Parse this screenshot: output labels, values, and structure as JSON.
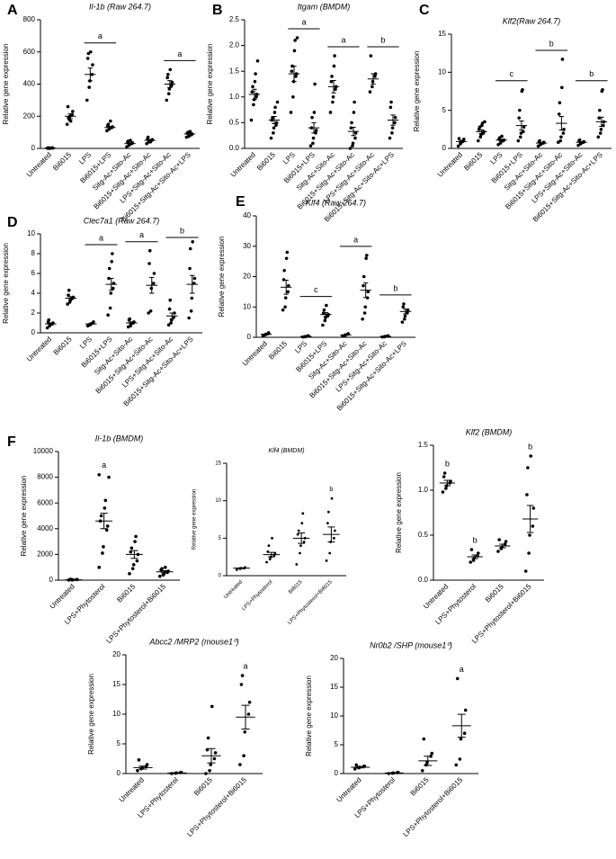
{
  "chart_data": [
    {
      "type": "dot",
      "panel": "A",
      "title": "Il-1b (Raw 264.7)",
      "ylabel": "Relative gene expression",
      "categories": [
        "Untreated",
        "Bi6015",
        "LPS",
        "Bi6015+LPS",
        "Sitg-Ac+Sito-Ac",
        "Bi6015+Sitg-Ac+Sito-Ac",
        "LPS+Sitg-Ac+Sito-Ac",
        "Bi6015+Sitg-Ac+Sito-Ac+LPS"
      ],
      "points": [
        [
          2,
          3,
          1,
          4,
          2,
          3,
          1
        ],
        [
          150,
          180,
          200,
          210,
          230,
          260,
          190,
          170
        ],
        [
          300,
          380,
          420,
          460,
          520,
          560,
          590,
          600
        ],
        [
          110,
          120,
          125,
          130,
          135,
          140,
          150,
          170
        ],
        [
          10,
          20,
          25,
          30,
          35,
          40,
          45,
          50
        ],
        [
          30,
          40,
          45,
          50,
          55,
          60,
          70,
          40
        ],
        [
          300,
          340,
          370,
          390,
          410,
          440,
          460,
          490
        ],
        [
          70,
          75,
          80,
          85,
          90,
          95,
          100,
          105
        ]
      ],
      "means": [
        2,
        200,
        460,
        130,
        30,
        50,
        400,
        90
      ],
      "sems": [
        1,
        15,
        40,
        7,
        5,
        5,
        22,
        5
      ],
      "ylim": [
        0,
        800
      ],
      "yticks": [
        0,
        200,
        400,
        600,
        800
      ],
      "sig_labels": [
        null,
        null,
        "a",
        null,
        null,
        null,
        "a",
        null
      ],
      "sig_bars": true
    },
    {
      "type": "dot",
      "panel": "B",
      "title": "Itgam (BMDM)",
      "ylabel": "Relative gene expression",
      "categories": [
        "Untreated",
        "Bi6015",
        "LPS",
        "Bi6015+LPS",
        "Sitg-Ac+Sito-Ac",
        "Bi6015+Sitg-Ac+Sito-Ac",
        "LPS+Sitg-Ac+Sito-Ac",
        "Bi6015+Sitg-Ac+Sito-Ac+LPS"
      ],
      "points": [
        [
          0.55,
          0.85,
          0.95,
          1.0,
          1.05,
          1.1,
          1.2,
          1.3,
          1.45,
          1.7
        ],
        [
          0.2,
          0.3,
          0.4,
          0.45,
          0.5,
          0.55,
          0.6,
          0.7,
          0.8,
          0.9
        ],
        [
          0.7,
          1.0,
          1.3,
          1.4,
          1.45,
          1.5,
          1.6,
          1.9,
          2.1,
          2.15
        ],
        [
          0.05,
          0.1,
          0.2,
          0.3,
          0.35,
          0.4,
          0.6,
          0.7,
          1.25
        ],
        [
          0.7,
          0.9,
          1.0,
          1.15,
          1.2,
          1.3,
          1.4,
          1.6,
          1.8
        ],
        [
          0,
          0.05,
          0.1,
          0.2,
          0.3,
          0.4,
          0.5,
          0.7,
          0.9
        ],
        [
          1.1,
          1.2,
          1.3,
          1.4,
          1.45,
          1.8
        ],
        [
          0.2,
          0.3,
          0.4,
          0.5,
          0.6,
          0.8,
          0.9
        ]
      ],
      "means": [
        1.05,
        0.55,
        1.45,
        0.4,
        1.2,
        0.33,
        1.35,
        0.55
      ],
      "sems": [
        0.1,
        0.07,
        0.15,
        0.1,
        0.12,
        0.08,
        0.1,
        0.1
      ],
      "ylim": [
        0,
        2.5
      ],
      "yticks": [
        {
          "value": 0,
          "label": "0.0"
        },
        0.5,
        {
          "value": 1,
          "label": "1.0"
        },
        1.5,
        {
          "value": 2,
          "label": "2.0"
        },
        2.5
      ],
      "sig_labels": [
        null,
        null,
        "a",
        null,
        "a",
        null,
        "b",
        null
      ],
      "sig_bars": true
    },
    {
      "type": "dot",
      "panel": "C",
      "title": "Klf2(Raw 264.7)",
      "ylabel": "Relative gene expression",
      "categories": [
        "Untreated",
        "Bi6015",
        "LPS",
        "Bi6015+LPS",
        "Sitg-Ac+Sito-Ac",
        "Bi6015+Sitg-Ac+Sito-Ac",
        "LPS+Sitg-Ac+Sito-Ac",
        "Bi6015+Sitg-Ac+Sito-Ac+LPS"
      ],
      "points": [
        [
          0.3,
          0.6,
          0.8,
          1,
          1.2,
          1.3
        ],
        [
          1,
          1.5,
          1.8,
          2,
          2.2,
          2.5,
          2.8,
          3,
          3.3,
          3.5
        ],
        [
          0.5,
          0.7,
          0.9,
          1,
          1.1,
          1.2,
          1.4,
          1.6
        ],
        [
          1,
          1.5,
          2,
          2.2,
          2.8,
          4,
          5,
          7.5,
          7.7
        ],
        [
          0.3,
          0.5,
          0.6,
          0.7,
          0.8,
          0.9,
          1
        ],
        [
          0.8,
          1,
          1.5,
          2,
          2.5,
          4.5,
          6,
          8,
          11.7
        ],
        [
          0.4,
          0.6,
          0.7,
          0.8,
          0.9,
          1,
          1.1
        ],
        [
          1.5,
          2,
          2.5,
          3,
          3.5,
          4,
          5,
          7.5,
          7.7
        ]
      ],
      "means": [
        0.9,
        2.2,
        1.1,
        3,
        0.7,
        3.3,
        0.8,
        3.5
      ],
      "sems": [
        0.15,
        0.25,
        0.1,
        0.6,
        0.08,
        0.9,
        0.08,
        0.6
      ],
      "ylim": [
        0,
        15
      ],
      "yticks": [
        0,
        5,
        10,
        15
      ],
      "sig_labels": [
        null,
        null,
        "c",
        null,
        "b",
        null,
        "b",
        null
      ],
      "sig_bars": true
    },
    {
      "type": "dot",
      "panel": "D",
      "title": "Clec7a1 (Raw 264.7)",
      "ylabel": "Relative gene expression",
      "categories": [
        "Untreated",
        "Bi6015",
        "LPS",
        "Bi6015+LPS",
        "Sitg-Ac+Sito-Ac",
        "Bi6015+Sitg-Ac+Sito-Ac",
        "LPS+Sitg-Ac+Sito-Ac",
        "Bi6015+Sitg-Ac+Sito-Ac+LPS"
      ],
      "points": [
        [
          0.5,
          0.7,
          0.8,
          0.9,
          1,
          1.1,
          1.3
        ],
        [
          2.9,
          3.1,
          3.3,
          3.5,
          3.6,
          3.8,
          4.3
        ],
        [
          0.7,
          0.8,
          0.9,
          1.0,
          1.1
        ],
        [
          1.8,
          2.5,
          4,
          4.5,
          5,
          5.5,
          6.5,
          7.2,
          8
        ],
        [
          0.6,
          0.7,
          0.9,
          1,
          1.1,
          1.3,
          1.4
        ],
        [
          2,
          2.2,
          4.5,
          5,
          6,
          7,
          8.3
        ],
        [
          0.8,
          1,
          1.3,
          1.6,
          2,
          2.4,
          3.3
        ],
        [
          1.5,
          2.2,
          3.5,
          5,
          5.5,
          6.5,
          8.5,
          9.2
        ]
      ],
      "means": [
        0.9,
        3.5,
        0.9,
        4.9,
        1.0,
        4.8,
        1.7,
        4.9
      ],
      "sems": [
        0.1,
        0.15,
        0.05,
        0.6,
        0.1,
        0.8,
        0.3,
        0.9
      ],
      "ylim": [
        0,
        10
      ],
      "yticks": [
        0,
        2,
        4,
        6,
        8,
        10
      ],
      "sig_labels": [
        null,
        null,
        "a",
        null,
        "a",
        null,
        "b",
        null
      ],
      "sig_bars": true
    },
    {
      "type": "dot",
      "panel": "E",
      "title": "Klf4 (Raw 264.7)",
      "ylabel": "Relative gene expression",
      "categories": [
        "Untreated",
        "Bi6015",
        "LPS",
        "Bi6015+LPS",
        "Sitg-Ac+Sito-Ac",
        "Bi6015+Sitg-Ac+Sito-Ac",
        "LPS+Sitg-Ac+Sito-Ac",
        "Bi6015+Sitg-Ac+Sito-Ac+LPS"
      ],
      "points": [
        [
          0.5,
          0.8,
          1,
          1.2,
          1.5
        ],
        [
          9,
          10,
          13,
          15,
          17,
          19,
          22,
          26,
          28
        ],
        [
          0.1,
          0.2,
          0.3,
          0.4,
          0.5
        ],
        [
          4,
          5.5,
          6.5,
          7,
          7.5,
          8,
          9,
          10.5
        ],
        [
          0.4,
          0.6,
          0.8,
          1,
          1.2
        ],
        [
          6,
          8,
          10,
          13,
          15,
          17,
          20,
          26,
          27
        ],
        [
          0.1,
          0.2,
          0.3,
          0.4,
          0.5
        ],
        [
          5,
          6,
          7,
          8,
          9,
          10,
          11
        ]
      ],
      "means": [
        1,
        16.5,
        0.3,
        7.5,
        0.8,
        15.5,
        0.3,
        8.5
      ],
      "sems": [
        0.15,
        2.3,
        0.05,
        0.6,
        0.1,
        2.4,
        0.05,
        0.8
      ],
      "ylim": [
        0,
        40
      ],
      "yticks": [
        0,
        10,
        20,
        30,
        40
      ],
      "sig_labels": [
        null,
        null,
        "c",
        null,
        "a",
        null,
        "b",
        null
      ],
      "sig_bars": true
    },
    {
      "type": "dot",
      "panel": "F",
      "title": "Il-1b (BMDM)",
      "ylabel": "Relative gene expression",
      "categories": [
        "Untreated",
        "LPS+Phytosterol",
        "Bi6015",
        "LPS+Phytosterol+Bi6015"
      ],
      "points": [
        [
          10,
          20,
          30,
          40,
          50,
          60,
          70
        ],
        [
          1000,
          2100,
          2600,
          3900,
          4200,
          4600,
          5000,
          5600,
          6200,
          8000,
          8200
        ],
        [
          500,
          900,
          1200,
          1500,
          2000,
          2200,
          2500,
          3000,
          3400
        ],
        [
          300,
          400,
          500,
          600,
          700,
          800,
          900,
          1000
        ]
      ],
      "means": [
        30,
        4600,
        2000,
        650
      ],
      "sems": [
        5,
        600,
        300,
        80
      ],
      "ylim": [
        0,
        10000
      ],
      "yticks": [
        0,
        2000,
        4000,
        6000,
        8000,
        10000
      ],
      "sig_labels": [
        null,
        "a",
        null,
        null
      ],
      "sig_bars": false
    },
    {
      "type": "dot",
      "title": "Klf4 (BMDM)",
      "ylabel": "Relative gene expression",
      "categories": [
        "Untreated",
        "LPS+Phytosterol",
        "Bi6015",
        "LPS+Phytosterol+Bi6015"
      ],
      "points": [
        [
          0.8,
          0.9,
          1,
          1,
          1.1
        ],
        [
          1.8,
          2.2,
          2.5,
          2.7,
          3,
          3.2,
          4,
          5
        ],
        [
          1.5,
          3,
          4,
          4.5,
          5,
          5.5,
          6,
          7,
          8.3
        ],
        [
          2,
          3,
          4.5,
          5,
          6,
          7,
          8.5,
          10.3
        ]
      ],
      "means": [
        1,
        2.8,
        5,
        5.5
      ],
      "sems": [
        0.05,
        0.3,
        0.7,
        1.0
      ],
      "ylim": [
        0,
        15
      ],
      "yticks": [
        0,
        5,
        10,
        15
      ],
      "sig_labels": [
        null,
        null,
        null,
        "b"
      ],
      "sig_bars": false
    },
    {
      "type": "dot",
      "title": "Klf2 (BMDM)",
      "ylabel": "Relative gene expression",
      "categories": [
        "Untreated",
        "LPS+Phytosterol",
        "Bi6015",
        "LPS+Phytosterol+Bi6015"
      ],
      "points": [
        [
          0.98,
          1.02,
          1.05,
          1.08,
          1.1,
          1.15,
          1.19
        ],
        [
          0.2,
          0.22,
          0.25,
          0.27,
          0.3,
          0.34
        ],
        [
          0.32,
          0.35,
          0.37,
          0.4,
          0.43,
          0.45
        ],
        [
          0.1,
          0.3,
          0.5,
          0.6,
          0.8,
          0.95,
          1.25,
          1.38
        ]
      ],
      "means": [
        1.08,
        0.26,
        0.38,
        0.68
      ],
      "sems": [
        0.03,
        0.02,
        0.02,
        0.15
      ],
      "ylim": [
        0,
        1.5
      ],
      "yticks": [
        {
          "value": 0,
          "label": "0.0"
        },
        0.5,
        {
          "value": 1,
          "label": "1.0"
        },
        1.5
      ],
      "sig_labels": [
        "b",
        "b",
        null,
        "b"
      ],
      "sig_bars": false
    },
    {
      "type": "dot",
      "title": "Abcc2 /MRP2 (mouse1⁰)",
      "ylabel": "Relative gene expression",
      "categories": [
        "Untreated",
        "LPS+Phytosterol",
        "Bi6015",
        "LPS+Phytosterol+Bi6015"
      ],
      "points": [
        [
          0.5,
          0.8,
          1,
          1.2,
          1.5,
          2.3
        ],
        [
          0,
          0.05,
          0.1,
          0.15,
          0.2
        ],
        [
          0,
          0.5,
          1.5,
          2.5,
          3.5,
          4,
          6,
          11.3
        ],
        [
          1.5,
          3,
          7,
          10,
          12,
          15,
          16.5
        ]
      ],
      "means": [
        1,
        0.1,
        3,
        9.5
      ],
      "sems": [
        0.25,
        0.03,
        1.2,
        2
      ],
      "ylim": [
        0,
        20
      ],
      "yticks": [
        0,
        5,
        10,
        15,
        20
      ],
      "sig_labels": [
        null,
        null,
        null,
        "a"
      ],
      "sig_bars": false
    },
    {
      "type": "dot",
      "title": "Nr0b2 /SHP (mouse1⁰)",
      "ylabel": "Relative gene expression",
      "categories": [
        "Untreated",
        "LPS+Phytosterol",
        "Bi6015",
        "LPS+Phytosterol+Bi6015"
      ],
      "points": [
        [
          0.8,
          1,
          1.1,
          1.2,
          1.3,
          1.5
        ],
        [
          0,
          0.05,
          0.1,
          0.15,
          0.2
        ],
        [
          0.5,
          1.5,
          2,
          3,
          3.5,
          6
        ],
        [
          1.5,
          2.5,
          6,
          7,
          11,
          16.5
        ]
      ],
      "means": [
        1.1,
        0.1,
        2.2,
        8.3
      ],
      "sems": [
        0.1,
        0.03,
        0.8,
        2
      ],
      "ylim": [
        0,
        20
      ],
      "yticks": [
        0,
        5,
        10,
        15,
        20
      ],
      "sig_labels": [
        null,
        null,
        null,
        "a"
      ],
      "sig_bars": false
    }
  ]
}
